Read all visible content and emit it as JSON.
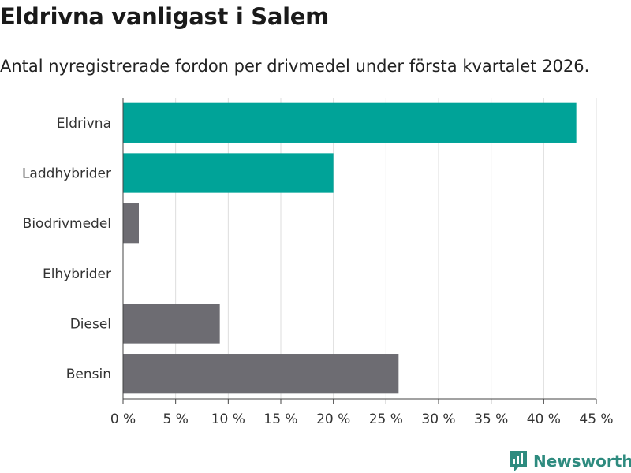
{
  "header": {
    "title": "Eldrivna vanligast i Salem",
    "subtitle": "Antal nyregistrerade fordon per drivmedel under första kvartalet 2026."
  },
  "brand": {
    "name": "Newsworthy",
    "color": "#2e8b7f"
  },
  "colors": {
    "highlight": "#00a398",
    "neutral": "#6d6c72",
    "grid": "#dddddd",
    "axis": "#444444"
  },
  "chart_data": {
    "type": "bar",
    "orientation": "horizontal",
    "title": "Eldrivna vanligast i Salem",
    "subtitle": "Antal nyregistrerade fordon per drivmedel under första kvartalet 2026.",
    "xlabel": "",
    "ylabel": "",
    "xlim": [
      0,
      45
    ],
    "grid": true,
    "categories": [
      "Eldrivna",
      "Laddhybrider",
      "Biodrivmedel",
      "Elhybrider",
      "Diesel",
      "Bensin"
    ],
    "values": [
      43.1,
      20.0,
      1.5,
      0,
      9.2,
      26.2
    ],
    "highlight": [
      true,
      true,
      false,
      false,
      false,
      false
    ],
    "ticks": [
      0,
      5,
      10,
      15,
      20,
      25,
      30,
      35,
      40,
      45
    ],
    "tick_labels": [
      "0 %",
      "5 %",
      "10 %",
      "15 %",
      "20 %",
      "25 %",
      "30 %",
      "35 %",
      "40 %",
      "45 %"
    ]
  }
}
